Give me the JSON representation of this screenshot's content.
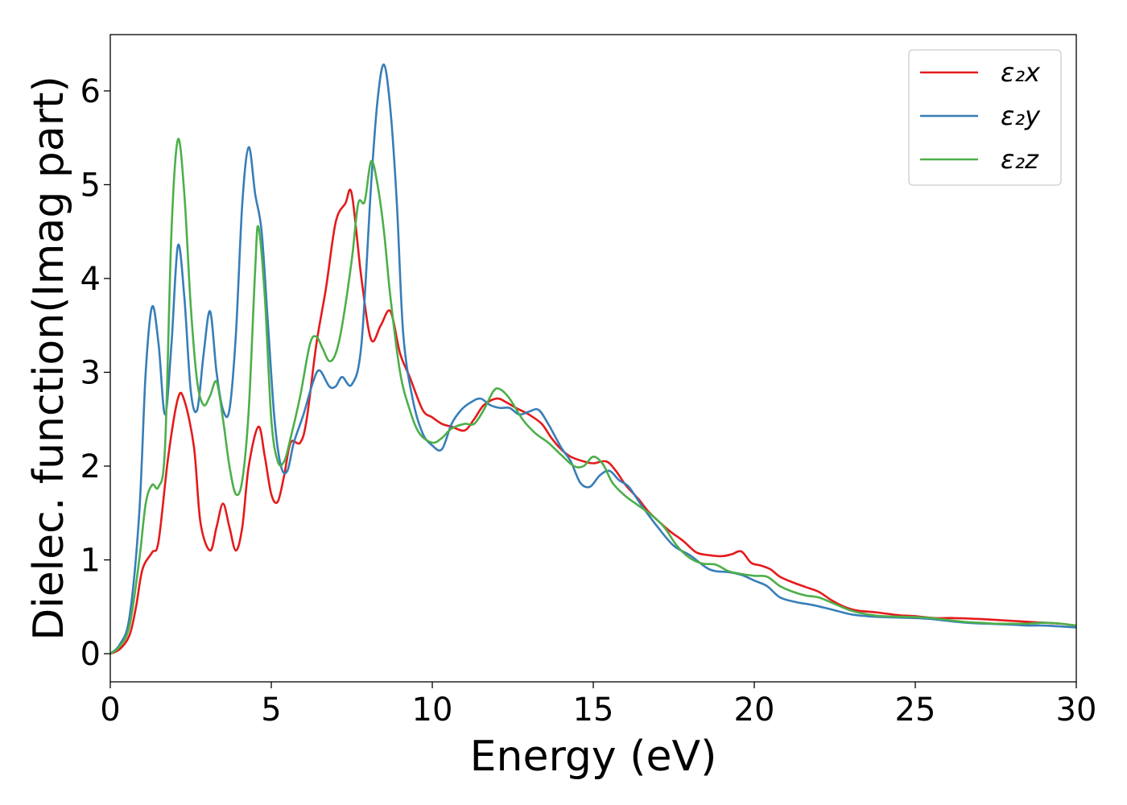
{
  "chart_data": {
    "type": "line",
    "title": "",
    "xlabel": "Energy (eV)",
    "ylabel": "Dielec. function(Imag part)",
    "xlim": [
      0,
      30
    ],
    "ylim": [
      -0.3,
      6.6
    ],
    "xticks": [
      0,
      5,
      10,
      15,
      20,
      25,
      30
    ],
    "yticks": [
      0,
      1,
      2,
      3,
      4,
      5,
      6
    ],
    "grid": false,
    "legend_position": "top-right",
    "series": [
      {
        "name": "ε₂x",
        "color": "#e41a1c",
        "points": [
          [
            0,
            0
          ],
          [
            0.3,
            0.05
          ],
          [
            0.6,
            0.2
          ],
          [
            0.8,
            0.5
          ],
          [
            1,
            0.9
          ],
          [
            1.3,
            1.08
          ],
          [
            1.5,
            1.2
          ],
          [
            1.8,
            2.1
          ],
          [
            2.1,
            2.72
          ],
          [
            2.3,
            2.7
          ],
          [
            2.6,
            2.2
          ],
          [
            2.8,
            1.4
          ],
          [
            3.1,
            1.1
          ],
          [
            3.3,
            1.35
          ],
          [
            3.5,
            1.6
          ],
          [
            3.7,
            1.35
          ],
          [
            3.9,
            1.1
          ],
          [
            4.1,
            1.35
          ],
          [
            4.3,
            2.0
          ],
          [
            4.6,
            2.42
          ],
          [
            4.8,
            2.1
          ],
          [
            5.0,
            1.7
          ],
          [
            5.2,
            1.62
          ],
          [
            5.4,
            1.9
          ],
          [
            5.6,
            2.25
          ],
          [
            5.9,
            2.25
          ],
          [
            6.1,
            2.5
          ],
          [
            6.4,
            3.3
          ],
          [
            6.7,
            3.9
          ],
          [
            7.0,
            4.6
          ],
          [
            7.3,
            4.8
          ],
          [
            7.5,
            4.9
          ],
          [
            7.8,
            4.0
          ],
          [
            8.1,
            3.35
          ],
          [
            8.4,
            3.5
          ],
          [
            8.7,
            3.65
          ],
          [
            9.0,
            3.2
          ],
          [
            9.3,
            2.95
          ],
          [
            9.7,
            2.6
          ],
          [
            10.0,
            2.52
          ],
          [
            10.3,
            2.45
          ],
          [
            10.6,
            2.42
          ],
          [
            11.0,
            2.38
          ],
          [
            11.3,
            2.5
          ],
          [
            11.6,
            2.65
          ],
          [
            12.0,
            2.72
          ],
          [
            12.3,
            2.68
          ],
          [
            12.6,
            2.62
          ],
          [
            13.0,
            2.55
          ],
          [
            13.4,
            2.45
          ],
          [
            13.7,
            2.3
          ],
          [
            14.0,
            2.18
          ],
          [
            14.3,
            2.1
          ],
          [
            14.7,
            2.05
          ],
          [
            15.0,
            2.03
          ],
          [
            15.4,
            2.05
          ],
          [
            15.7,
            1.95
          ],
          [
            16.0,
            1.8
          ],
          [
            16.4,
            1.65
          ],
          [
            16.7,
            1.52
          ],
          [
            17.0,
            1.42
          ],
          [
            17.4,
            1.3
          ],
          [
            17.8,
            1.2
          ],
          [
            18.2,
            1.08
          ],
          [
            18.6,
            1.05
          ],
          [
            19.0,
            1.04
          ],
          [
            19.3,
            1.06
          ],
          [
            19.6,
            1.09
          ],
          [
            19.9,
            0.97
          ],
          [
            20.2,
            0.94
          ],
          [
            20.5,
            0.9
          ],
          [
            20.8,
            0.82
          ],
          [
            21.2,
            0.76
          ],
          [
            21.6,
            0.71
          ],
          [
            22.0,
            0.66
          ],
          [
            22.4,
            0.57
          ],
          [
            22.8,
            0.5
          ],
          [
            23.2,
            0.46
          ],
          [
            23.8,
            0.44
          ],
          [
            24.5,
            0.41
          ],
          [
            25.0,
            0.4
          ],
          [
            25.6,
            0.38
          ],
          [
            26.2,
            0.38
          ],
          [
            27.0,
            0.37
          ],
          [
            27.5,
            0.36
          ],
          [
            28.0,
            0.35
          ],
          [
            28.5,
            0.34
          ],
          [
            29.0,
            0.33
          ],
          [
            29.5,
            0.32
          ],
          [
            30.0,
            0.3
          ]
        ]
      },
      {
        "name": "ε₂y",
        "color": "#377eb8",
        "points": [
          [
            0,
            0
          ],
          [
            0.3,
            0.1
          ],
          [
            0.6,
            0.4
          ],
          [
            0.9,
            1.5
          ],
          [
            1.1,
            3.0
          ],
          [
            1.3,
            3.7
          ],
          [
            1.5,
            3.3
          ],
          [
            1.7,
            2.55
          ],
          [
            1.9,
            3.3
          ],
          [
            2.1,
            4.35
          ],
          [
            2.3,
            3.8
          ],
          [
            2.5,
            2.8
          ],
          [
            2.7,
            2.6
          ],
          [
            2.9,
            3.2
          ],
          [
            3.1,
            3.65
          ],
          [
            3.3,
            3.0
          ],
          [
            3.5,
            2.6
          ],
          [
            3.7,
            2.6
          ],
          [
            3.9,
            3.4
          ],
          [
            4.1,
            4.8
          ],
          [
            4.3,
            5.4
          ],
          [
            4.5,
            4.9
          ],
          [
            4.7,
            4.5
          ],
          [
            4.9,
            3.5
          ],
          [
            5.1,
            2.5
          ],
          [
            5.3,
            2.0
          ],
          [
            5.5,
            1.95
          ],
          [
            5.7,
            2.25
          ],
          [
            6.0,
            2.55
          ],
          [
            6.3,
            2.9
          ],
          [
            6.5,
            3.02
          ],
          [
            6.8,
            2.85
          ],
          [
            7.0,
            2.85
          ],
          [
            7.2,
            2.95
          ],
          [
            7.5,
            2.87
          ],
          [
            7.8,
            3.3
          ],
          [
            8.1,
            5.0
          ],
          [
            8.3,
            5.9
          ],
          [
            8.5,
            6.28
          ],
          [
            8.7,
            5.8
          ],
          [
            8.9,
            4.8
          ],
          [
            9.1,
            3.4
          ],
          [
            9.4,
            2.7
          ],
          [
            9.7,
            2.35
          ],
          [
            10.0,
            2.22
          ],
          [
            10.3,
            2.18
          ],
          [
            10.6,
            2.45
          ],
          [
            10.9,
            2.6
          ],
          [
            11.2,
            2.68
          ],
          [
            11.5,
            2.72
          ],
          [
            11.8,
            2.65
          ],
          [
            12.1,
            2.62
          ],
          [
            12.4,
            2.62
          ],
          [
            12.7,
            2.55
          ],
          [
            13.0,
            2.58
          ],
          [
            13.3,
            2.6
          ],
          [
            13.6,
            2.45
          ],
          [
            14.0,
            2.2
          ],
          [
            14.3,
            2.05
          ],
          [
            14.6,
            1.82
          ],
          [
            14.9,
            1.78
          ],
          [
            15.2,
            1.9
          ],
          [
            15.5,
            1.95
          ],
          [
            15.8,
            1.85
          ],
          [
            16.1,
            1.78
          ],
          [
            16.5,
            1.58
          ],
          [
            17.0,
            1.35
          ],
          [
            17.5,
            1.15
          ],
          [
            18.0,
            1.05
          ],
          [
            18.5,
            0.92
          ],
          [
            18.8,
            0.88
          ],
          [
            19.2,
            0.87
          ],
          [
            19.6,
            0.84
          ],
          [
            20.0,
            0.78
          ],
          [
            20.4,
            0.72
          ],
          [
            20.8,
            0.6
          ],
          [
            21.3,
            0.55
          ],
          [
            21.8,
            0.52
          ],
          [
            22.3,
            0.48
          ],
          [
            23.0,
            0.42
          ],
          [
            23.5,
            0.4
          ],
          [
            24.0,
            0.39
          ],
          [
            25.0,
            0.38
          ],
          [
            25.5,
            0.37
          ],
          [
            26.0,
            0.35
          ],
          [
            26.6,
            0.33
          ],
          [
            27.2,
            0.32
          ],
          [
            28.0,
            0.31
          ],
          [
            28.5,
            0.3
          ],
          [
            29.0,
            0.3
          ],
          [
            30.0,
            0.28
          ]
        ]
      },
      {
        "name": "ε₂z",
        "color": "#4daf4a",
        "points": [
          [
            0,
            0
          ],
          [
            0.3,
            0.08
          ],
          [
            0.6,
            0.3
          ],
          [
            0.9,
            1.0
          ],
          [
            1.1,
            1.6
          ],
          [
            1.3,
            1.8
          ],
          [
            1.5,
            1.78
          ],
          [
            1.7,
            2.2
          ],
          [
            1.9,
            4.5
          ],
          [
            2.1,
            5.48
          ],
          [
            2.3,
            4.9
          ],
          [
            2.5,
            3.7
          ],
          [
            2.7,
            2.9
          ],
          [
            2.9,
            2.65
          ],
          [
            3.1,
            2.75
          ],
          [
            3.3,
            2.9
          ],
          [
            3.5,
            2.5
          ],
          [
            3.7,
            2.0
          ],
          [
            3.9,
            1.7
          ],
          [
            4.1,
            1.85
          ],
          [
            4.3,
            2.6
          ],
          [
            4.5,
            4.1
          ],
          [
            4.6,
            4.55
          ],
          [
            4.8,
            3.8
          ],
          [
            5.0,
            2.5
          ],
          [
            5.2,
            2.05
          ],
          [
            5.4,
            2.05
          ],
          [
            5.6,
            2.3
          ],
          [
            5.9,
            2.75
          ],
          [
            6.2,
            3.3
          ],
          [
            6.4,
            3.38
          ],
          [
            6.6,
            3.25
          ],
          [
            6.8,
            3.12
          ],
          [
            7.0,
            3.2
          ],
          [
            7.2,
            3.5
          ],
          [
            7.5,
            4.2
          ],
          [
            7.7,
            4.8
          ],
          [
            7.9,
            4.82
          ],
          [
            8.1,
            5.25
          ],
          [
            8.3,
            5.0
          ],
          [
            8.5,
            4.5
          ],
          [
            8.7,
            3.8
          ],
          [
            9.0,
            3.0
          ],
          [
            9.3,
            2.6
          ],
          [
            9.6,
            2.35
          ],
          [
            10.0,
            2.25
          ],
          [
            10.3,
            2.3
          ],
          [
            10.6,
            2.4
          ],
          [
            11.0,
            2.45
          ],
          [
            11.3,
            2.45
          ],
          [
            11.6,
            2.6
          ],
          [
            11.9,
            2.8
          ],
          [
            12.1,
            2.82
          ],
          [
            12.4,
            2.72
          ],
          [
            12.8,
            2.5
          ],
          [
            13.2,
            2.35
          ],
          [
            13.6,
            2.25
          ],
          [
            14.0,
            2.12
          ],
          [
            14.4,
            2.0
          ],
          [
            14.7,
            2.0
          ],
          [
            15.0,
            2.1
          ],
          [
            15.3,
            2.02
          ],
          [
            15.6,
            1.82
          ],
          [
            16.0,
            1.68
          ],
          [
            16.4,
            1.58
          ],
          [
            16.8,
            1.48
          ],
          [
            17.2,
            1.35
          ],
          [
            17.6,
            1.15
          ],
          [
            18.0,
            1.02
          ],
          [
            18.4,
            0.96
          ],
          [
            18.8,
            0.95
          ],
          [
            19.2,
            0.88
          ],
          [
            19.6,
            0.85
          ],
          [
            20.0,
            0.83
          ],
          [
            20.4,
            0.82
          ],
          [
            20.8,
            0.72
          ],
          [
            21.2,
            0.66
          ],
          [
            21.6,
            0.62
          ],
          [
            22.0,
            0.6
          ],
          [
            22.5,
            0.53
          ],
          [
            23.0,
            0.46
          ],
          [
            23.5,
            0.42
          ],
          [
            24.0,
            0.4
          ],
          [
            25.0,
            0.39
          ],
          [
            25.5,
            0.38
          ],
          [
            26.0,
            0.36
          ],
          [
            26.5,
            0.34
          ],
          [
            27.0,
            0.33
          ],
          [
            27.5,
            0.32
          ],
          [
            28.0,
            0.32
          ],
          [
            28.5,
            0.32
          ],
          [
            29.0,
            0.33
          ],
          [
            29.5,
            0.32
          ],
          [
            30.0,
            0.3
          ]
        ]
      }
    ]
  }
}
